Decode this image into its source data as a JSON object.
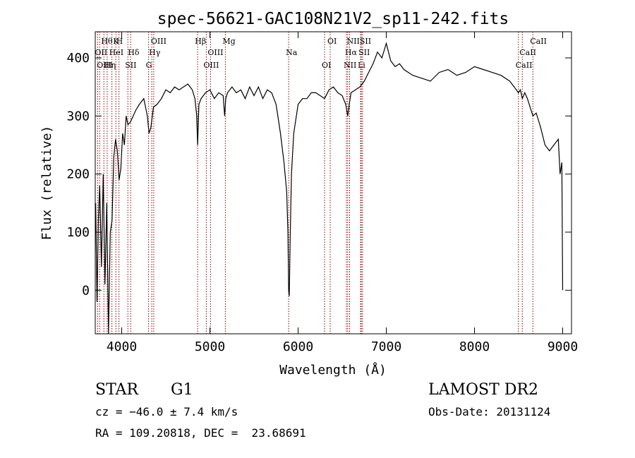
{
  "chart_data": {
    "type": "line",
    "title": "spec-56621-GAC108N21V2_sp11-242.fits",
    "xlabel": "Wavelength (Å)",
    "ylabel": "Flux (relative)",
    "xlim": [
      3700,
      9100
    ],
    "ylim": [
      -75,
      445
    ],
    "xticks": [
      4000,
      5000,
      6000,
      7000,
      8000,
      9000
    ],
    "yticks": [
      0,
      100,
      200,
      300,
      400
    ],
    "grid": false,
    "series_color": "#000000",
    "line_marker_color": "#8b0000",
    "series": [
      {
        "x": [
          3705,
          3720,
          3735,
          3750,
          3770,
          3790,
          3810,
          3830,
          3850,
          3870,
          3890,
          3910,
          3930,
          3950,
          3970,
          3990,
          4010,
          4030,
          4050,
          4070,
          4100,
          4130,
          4160,
          4200,
          4250,
          4290,
          4310,
          4330,
          4360,
          4400,
          4450,
          4500,
          4550,
          4600,
          4650,
          4700,
          4750,
          4800,
          4830,
          4850,
          4861,
          4875,
          4900,
          4950,
          5000,
          5050,
          5100,
          5150,
          5167,
          5180,
          5200,
          5250,
          5300,
          5350,
          5400,
          5450,
          5500,
          5550,
          5600,
          5650,
          5700,
          5750,
          5800,
          5840,
          5870,
          5885,
          5893,
          5900,
          5910,
          5925,
          5950,
          6000,
          6050,
          6100,
          6150,
          6200,
          6250,
          6300,
          6350,
          6400,
          6450,
          6500,
          6540,
          6563,
          6580,
          6600,
          6650,
          6700,
          6750,
          6800,
          6850,
          6900,
          6950,
          7000,
          7050,
          7100,
          7150,
          7200,
          7300,
          7400,
          7500,
          7600,
          7700,
          7800,
          7900,
          8000,
          8100,
          8200,
          8300,
          8400,
          8450,
          8498,
          8520,
          8542,
          8570,
          8600,
          8662,
          8700,
          8750,
          8800,
          8850,
          8900,
          8950,
          8970,
          8990,
          9000
        ],
        "y": [
          150,
          -20,
          120,
          180,
          40,
          200,
          10,
          150,
          -75,
          100,
          120,
          230,
          260,
          240,
          190,
          210,
          270,
          250,
          300,
          285,
          290,
          300,
          310,
          320,
          330,
          300,
          270,
          280,
          315,
          320,
          330,
          345,
          340,
          350,
          345,
          350,
          355,
          345,
          330,
          300,
          250,
          320,
          330,
          340,
          345,
          330,
          340,
          335,
          300,
          330,
          340,
          350,
          340,
          345,
          330,
          350,
          335,
          350,
          330,
          345,
          340,
          320,
          270,
          220,
          170,
          100,
          0,
          -10,
          90,
          200,
          270,
          320,
          330,
          330,
          340,
          340,
          335,
          330,
          345,
          350,
          340,
          335,
          320,
          300,
          320,
          340,
          345,
          350,
          360,
          375,
          390,
          410,
          400,
          425,
          395,
          385,
          390,
          380,
          370,
          365,
          360,
          375,
          380,
          370,
          375,
          385,
          380,
          375,
          370,
          360,
          350,
          340,
          345,
          330,
          340,
          330,
          300,
          305,
          280,
          250,
          240,
          250,
          260,
          200,
          220,
          0
        ]
      }
    ],
    "line_labels": [
      {
        "text": "Hθ",
        "x": 3798
      },
      {
        "text": "OII",
        "x": 3727
      },
      {
        "text": "OIII",
        "x": 3750
      },
      {
        "text": "K",
        "x": 3934
      },
      {
        "text": "HeI",
        "x": 3889
      },
      {
        "text": "Hη",
        "x": 3835
      },
      {
        "text": "H",
        "x": 3969
      },
      {
        "text": "Hδ",
        "x": 4102
      },
      {
        "text": "SII",
        "x": 4070
      },
      {
        "text": "OIII",
        "x": 4363
      },
      {
        "text": "Hγ",
        "x": 4341
      },
      {
        "text": "G",
        "x": 4305
      },
      {
        "text": "Hβ",
        "x": 4861
      },
      {
        "text": "OIII",
        "x": 5007
      },
      {
        "text": "OIII",
        "x": 4959
      },
      {
        "text": "Mg",
        "x": 5175
      },
      {
        "text": "Na",
        "x": 5893
      },
      {
        "text": "OI",
        "x": 6300
      },
      {
        "text": "OI",
        "x": 6364
      },
      {
        "text": "Hα",
        "x": 6563
      },
      {
        "text": "NII",
        "x": 6548
      },
      {
        "text": "NII",
        "x": 6584
      },
      {
        "text": "SII",
        "x": 6717
      },
      {
        "text": "Li",
        "x": 6708
      },
      {
        "text": "SII",
        "x": 6731
      },
      {
        "text": "CaII",
        "x": 8542
      },
      {
        "text": "CaII",
        "x": 8498
      },
      {
        "text": "CaII",
        "x": 8662
      }
    ]
  },
  "info": {
    "object_class": "STAR",
    "subclass": "G1",
    "survey": "LAMOST DR2",
    "redshift": "cz = −46.0 ± 7.4 km/s",
    "obs_date": "Obs-Date: 20131124",
    "coords": "RA = 109.20818, DEC =  23.68691"
  }
}
